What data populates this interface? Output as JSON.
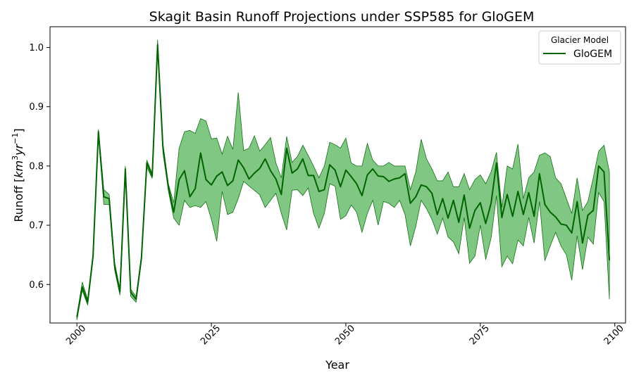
{
  "chart_data": {
    "type": "line",
    "title": "Skagit Basin Runoff Projections under SSP585 for GloGEM",
    "xlabel": "Year",
    "ylabel_main": "Runoff [",
    "ylabel_units": {
      "a": "km",
      "b": "3",
      "c": "yr",
      "d": "−1",
      "e": "]"
    },
    "xlim": [
      1995,
      2102
    ],
    "ylim": [
      0.535,
      1.035
    ],
    "xticks": [
      2000,
      2025,
      2050,
      2075,
      2100
    ],
    "xtick_labels": [
      "2000",
      "2025",
      "2050",
      "2075",
      "2100"
    ],
    "yticks": [
      0.6,
      0.7,
      0.8,
      0.9,
      1.0
    ],
    "ytick_labels": [
      "0.6",
      "0.7",
      "0.8",
      "0.9",
      "1.0"
    ],
    "grid": false,
    "legend": {
      "title": "Glacier Model",
      "placement": "top-right"
    },
    "series": [
      {
        "name": "GloGEM",
        "color": "#006400",
        "band_color": "#4caf50",
        "x": [
          2000,
          2001,
          2002,
          2003,
          2004,
          2005,
          2006,
          2007,
          2008,
          2009,
          2010,
          2011,
          2012,
          2013,
          2014,
          2015,
          2016,
          2017,
          2018,
          2019,
          2020,
          2021,
          2022,
          2023,
          2024,
          2025,
          2026,
          2027,
          2028,
          2029,
          2030,
          2031,
          2032,
          2033,
          2034,
          2035,
          2036,
          2037,
          2038,
          2039,
          2040,
          2041,
          2042,
          2043,
          2044,
          2045,
          2046,
          2047,
          2048,
          2049,
          2050,
          2051,
          2052,
          2053,
          2054,
          2055,
          2056,
          2057,
          2058,
          2059,
          2060,
          2061,
          2062,
          2063,
          2064,
          2065,
          2066,
          2067,
          2068,
          2069,
          2070,
          2071,
          2072,
          2073,
          2074,
          2075,
          2076,
          2077,
          2078,
          2079,
          2080,
          2081,
          2082,
          2083,
          2084,
          2085,
          2086,
          2087,
          2088,
          2089,
          2090,
          2091,
          2092,
          2093,
          2094,
          2095,
          2096,
          2097,
          2098,
          2099
        ],
        "mean": [
          0.545,
          0.596,
          0.57,
          0.648,
          0.858,
          0.748,
          0.745,
          0.632,
          0.588,
          0.795,
          0.587,
          0.575,
          0.645,
          0.805,
          0.783,
          1.005,
          0.83,
          0.765,
          0.722,
          0.777,
          0.792,
          0.748,
          0.762,
          0.822,
          0.777,
          0.768,
          0.783,
          0.79,
          0.767,
          0.775,
          0.81,
          0.797,
          0.778,
          0.788,
          0.796,
          0.812,
          0.792,
          0.778,
          0.752,
          0.83,
          0.788,
          0.795,
          0.812,
          0.784,
          0.784,
          0.757,
          0.76,
          0.802,
          0.793,
          0.765,
          0.793,
          0.782,
          0.77,
          0.75,
          0.785,
          0.795,
          0.783,
          0.782,
          0.774,
          0.778,
          0.78,
          0.787,
          0.737,
          0.748,
          0.768,
          0.765,
          0.754,
          0.718,
          0.745,
          0.712,
          0.742,
          0.705,
          0.751,
          0.695,
          0.725,
          0.738,
          0.703,
          0.737,
          0.805,
          0.713,
          0.752,
          0.715,
          0.757,
          0.718,
          0.755,
          0.715,
          0.787,
          0.735,
          0.722,
          0.714,
          0.702,
          0.7,
          0.687,
          0.74,
          0.67,
          0.717,
          0.725,
          0.8,
          0.79,
          0.641
        ],
        "upper": [
          0.548,
          0.604,
          0.575,
          0.652,
          0.862,
          0.76,
          0.752,
          0.638,
          0.592,
          0.8,
          0.592,
          0.58,
          0.65,
          0.81,
          0.787,
          1.013,
          0.838,
          0.77,
          0.738,
          0.83,
          0.858,
          0.86,
          0.855,
          0.88,
          0.876,
          0.846,
          0.847,
          0.82,
          0.85,
          0.828,
          0.924,
          0.826,
          0.83,
          0.851,
          0.825,
          0.836,
          0.848,
          0.805,
          0.78,
          0.85,
          0.806,
          0.816,
          0.835,
          0.818,
          0.8,
          0.78,
          0.8,
          0.84,
          0.836,
          0.83,
          0.847,
          0.805,
          0.8,
          0.8,
          0.838,
          0.81,
          0.8,
          0.8,
          0.806,
          0.8,
          0.8,
          0.8,
          0.76,
          0.79,
          0.845,
          0.812,
          0.795,
          0.775,
          0.775,
          0.79,
          0.765,
          0.765,
          0.787,
          0.76,
          0.777,
          0.785,
          0.77,
          0.79,
          0.823,
          0.73,
          0.8,
          0.795,
          0.837,
          0.745,
          0.78,
          0.79,
          0.818,
          0.822,
          0.816,
          0.78,
          0.77,
          0.745,
          0.72,
          0.78,
          0.725,
          0.74,
          0.78,
          0.825,
          0.835,
          0.79
        ],
        "lower": [
          0.54,
          0.59,
          0.565,
          0.642,
          0.852,
          0.735,
          0.735,
          0.625,
          0.582,
          0.788,
          0.58,
          0.57,
          0.64,
          0.798,
          0.779,
          0.998,
          0.822,
          0.758,
          0.712,
          0.7,
          0.742,
          0.73,
          0.733,
          0.73,
          0.74,
          0.71,
          0.673,
          0.757,
          0.718,
          0.722,
          0.745,
          0.774,
          0.766,
          0.759,
          0.751,
          0.73,
          0.742,
          0.754,
          0.72,
          0.692,
          0.759,
          0.76,
          0.75,
          0.763,
          0.72,
          0.695,
          0.72,
          0.77,
          0.766,
          0.71,
          0.716,
          0.734,
          0.722,
          0.688,
          0.72,
          0.742,
          0.7,
          0.74,
          0.737,
          0.73,
          0.742,
          0.718,
          0.665,
          0.698,
          0.742,
          0.728,
          0.71,
          0.685,
          0.712,
          0.68,
          0.672,
          0.652,
          0.713,
          0.636,
          0.648,
          0.7,
          0.642,
          0.678,
          0.75,
          0.63,
          0.648,
          0.635,
          0.675,
          0.665,
          0.713,
          0.67,
          0.74,
          0.64,
          0.665,
          0.688,
          0.665,
          0.65,
          0.607,
          0.682,
          0.625,
          0.68,
          0.668,
          0.755,
          0.74,
          0.575
        ]
      }
    ]
  }
}
